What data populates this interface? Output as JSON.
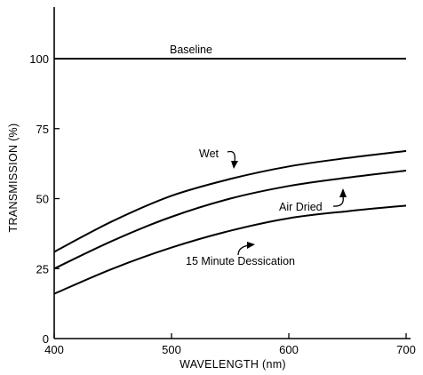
{
  "chart_data": {
    "type": "line",
    "title": "",
    "xlabel": "WAVELENGTH (nm)",
    "ylabel": "TRANSMISSION (%)",
    "xlim": [
      400,
      700
    ],
    "ylim": [
      0,
      115
    ],
    "x_ticks": [
      400,
      500,
      600,
      700
    ],
    "y_ticks": [
      0,
      25,
      50,
      75,
      100
    ],
    "grid": false,
    "legend": "none (series labeled directly on curves)",
    "series": [
      {
        "name": "Baseline",
        "x": [
          400,
          450,
          500,
          550,
          600,
          650,
          700
        ],
        "y": [
          100,
          100,
          100,
          100,
          100,
          100,
          100
        ]
      },
      {
        "name": "Wet",
        "x": [
          400,
          450,
          500,
          550,
          600,
          650,
          700
        ],
        "y": [
          31,
          42,
          51,
          57,
          61.5,
          64.5,
          67
        ]
      },
      {
        "name": "Air Dried",
        "x": [
          400,
          450,
          500,
          550,
          600,
          650,
          700
        ],
        "y": [
          25,
          35,
          43.5,
          50,
          54.5,
          57.5,
          60
        ]
      },
      {
        "name": "15 Minute Dessication",
        "x": [
          400,
          450,
          500,
          550,
          600,
          650,
          700
        ],
        "y": [
          16,
          25,
          32.5,
          38.5,
          43,
          45.5,
          47.5
        ]
      }
    ],
    "annotations": [
      "Baseline",
      "Wet",
      "Air Dried",
      "15 Minute Dessication"
    ]
  }
}
